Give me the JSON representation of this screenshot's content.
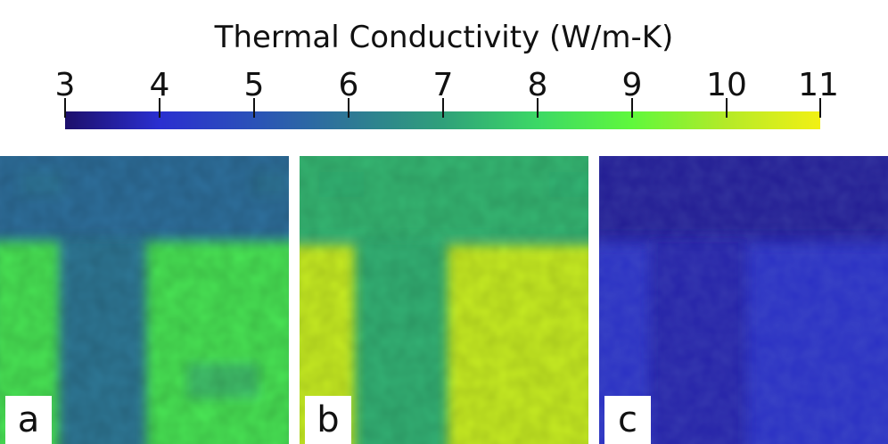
{
  "title": "Thermal Conductivity (W/m-K)",
  "colorbar": {
    "min": 3,
    "max": 11,
    "ticks": [
      "3",
      "4",
      "5",
      "6",
      "7",
      "8",
      "9",
      "10",
      "11"
    ],
    "colors": [
      "#1d0f6b",
      "#2a2fd0",
      "#2a52b8",
      "#2e7896",
      "#2fa07a",
      "#3cd866",
      "#5ff83c",
      "#b4ea28",
      "#f2f014"
    ]
  },
  "panels": [
    {
      "label": "a",
      "top_value": 5.8,
      "pillar_value": 8.4,
      "gap_value": 6.0
    },
    {
      "label": "b",
      "top_value": 7.4,
      "pillar_value": 10.3,
      "gap_value": 7.3
    },
    {
      "label": "c",
      "top_value": 3.4,
      "pillar_value": 4.2,
      "gap_value": 3.6
    }
  ]
}
